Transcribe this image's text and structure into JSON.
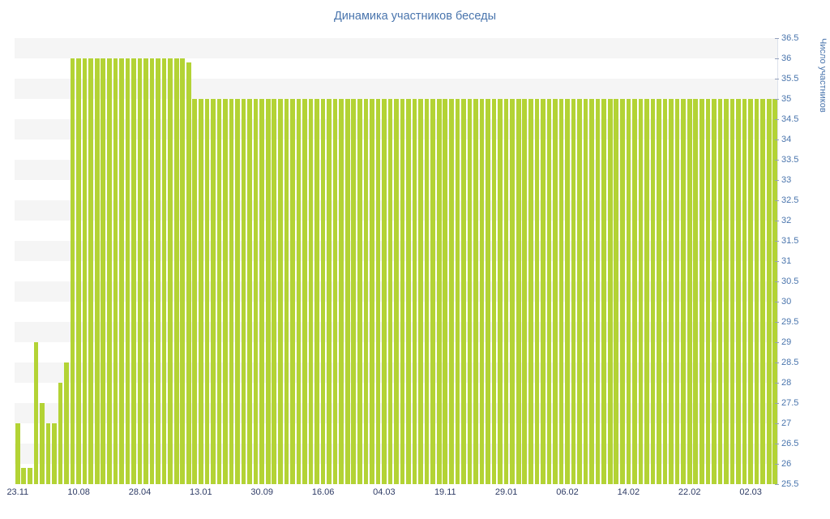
{
  "chart_data": {
    "type": "bar",
    "title": "Динамика участников беседы",
    "ylabel": "Число участников",
    "xlabel": "",
    "ylim": [
      25.5,
      36.5
    ],
    "y_tick_step": 0.5,
    "grid": "horizontal-bands",
    "legend": "none",
    "y_axis_position": "right",
    "y_tick_labels": [
      "36.5",
      "36",
      "35.5",
      "35",
      "34.5",
      "34",
      "33.5",
      "33",
      "32.5",
      "32",
      "31.5",
      "31",
      "30.5",
      "30",
      "29.5",
      "29",
      "28.5",
      "28",
      "27.5",
      "27",
      "26.5",
      "26",
      "25.5"
    ],
    "x_tick_labels": [
      "23.11",
      "10.08",
      "28.04",
      "13.01",
      "30.09",
      "16.06",
      "04.03",
      "19.11",
      "29.01",
      "06.02",
      "14.02",
      "22.02",
      "02.03"
    ],
    "x_tick_positions": [
      0,
      10,
      20,
      30,
      40,
      50,
      60,
      70,
      80,
      90,
      100,
      110,
      120
    ],
    "values": [
      27,
      25.9,
      25.9,
      29,
      27.5,
      27,
      27,
      28,
      28.5,
      36,
      36,
      36,
      36,
      36,
      36,
      36,
      36,
      36,
      36,
      36,
      36,
      36,
      36,
      36,
      36,
      36,
      36,
      36,
      35.9,
      35,
      35,
      35,
      35,
      35,
      35,
      35,
      35,
      35,
      35,
      35,
      35,
      35,
      35,
      35,
      35,
      35,
      35,
      35,
      35,
      35,
      35,
      35,
      35,
      35,
      35,
      35,
      35,
      35,
      35,
      35,
      35,
      35,
      35,
      35,
      35,
      35,
      35,
      35,
      35,
      35,
      35,
      35,
      35,
      35,
      35,
      35,
      35,
      35,
      35,
      35,
      35,
      35,
      35,
      35,
      35,
      35,
      35,
      35,
      35,
      35,
      35,
      35,
      35,
      35,
      35,
      35,
      35,
      35,
      35,
      35,
      35,
      35,
      35,
      35,
      35,
      35,
      35,
      35,
      35,
      35,
      35,
      35,
      35,
      35,
      35,
      35,
      35,
      35,
      35,
      35,
      35,
      35,
      35,
      35,
      35
    ],
    "colors": {
      "bar": "#b3d335",
      "stripe": "#f5f5f5",
      "title": "#4a75ad",
      "y_ticks": "#4a75ad",
      "x_ticks": "#2f3c66",
      "tick_mark": "#93a1bd",
      "axis_line": "#dde2ec"
    }
  }
}
